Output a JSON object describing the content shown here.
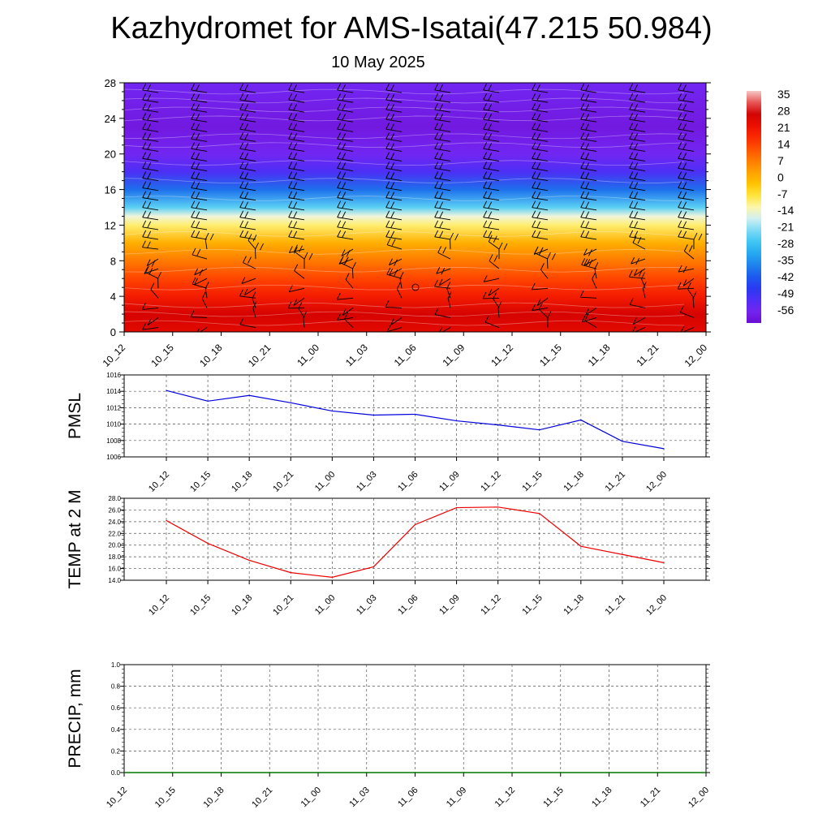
{
  "header": {
    "title": "Kazhydromet for AMS-Isatai(47.215 50.984)",
    "subtitle": "10 May 2025"
  },
  "chart_data": [
    {
      "type": "heatmap",
      "name": "temperature-wind-profile",
      "xlabel": "",
      "ylabel": "",
      "time_labels": [
        "10_12",
        "10_15",
        "10_18",
        "10_21",
        "11_00",
        "11_03",
        "11_06",
        "11_09",
        "11_12",
        "11_15",
        "11_18",
        "11_21",
        "12_00"
      ],
      "y_ticks": [
        0,
        4,
        8,
        12,
        16,
        20,
        24,
        28
      ],
      "ylim": [
        0,
        28
      ],
      "colorbar": {
        "labels": [
          "35",
          "28",
          "21",
          "14",
          "7",
          "0",
          "-7",
          "-14",
          "-21",
          "-28",
          "-35",
          "-42",
          "-49",
          "-56"
        ],
        "range": [
          -60,
          37
        ]
      },
      "temperature_profile": [
        {
          "level": 0,
          "value": 24
        },
        {
          "level": 2,
          "value": 26
        },
        {
          "level": 4,
          "value": 20
        },
        {
          "level": 6,
          "value": 14
        },
        {
          "level": 8,
          "value": 8
        },
        {
          "level": 10,
          "value": 1
        },
        {
          "level": 12,
          "value": -9
        },
        {
          "level": 13,
          "value": -14
        },
        {
          "level": 14,
          "value": -24
        },
        {
          "level": 16,
          "value": -38
        },
        {
          "level": 18,
          "value": -50
        },
        {
          "level": 20,
          "value": -55
        },
        {
          "level": 23,
          "value": -58
        },
        {
          "level": 28,
          "value": -55
        }
      ]
    },
    {
      "type": "line",
      "name": "pmsl",
      "ylabel": "PMSL",
      "x": [
        "10_12",
        "10_15",
        "10_18",
        "10_21",
        "11_00",
        "11_03",
        "11_06",
        "11_09",
        "11_12",
        "11_15",
        "11_18",
        "11_21",
        "12_00"
      ],
      "series": [
        {
          "values": [
            1014.1,
            1012.8,
            1013.5,
            1012.6,
            1011.6,
            1011.1,
            1011.2,
            1010.4,
            1009.9,
            1009.3,
            1010.5,
            1007.9,
            1007.0
          ]
        }
      ],
      "ylim": [
        1006,
        1016
      ],
      "y_ticks": [
        "1006",
        "1008",
        "1010",
        "1012",
        "1014",
        "1016"
      ],
      "color": "#0000dd"
    },
    {
      "type": "line",
      "name": "temp2m",
      "ylabel": "TEMP at 2 M",
      "x": [
        "10_12",
        "10_15",
        "10_18",
        "10_21",
        "11_00",
        "11_03",
        "11_06",
        "11_09",
        "11_12",
        "11_15",
        "11_18",
        "11_21",
        "12_00"
      ],
      "series": [
        {
          "values": [
            24.2,
            20.3,
            17.4,
            15.3,
            14.5,
            16.3,
            23.5,
            26.4,
            26.5,
            25.4,
            19.8,
            18.4,
            17.0
          ]
        }
      ],
      "ylim": [
        14,
        28
      ],
      "y_ticks": [
        "14.0",
        "16.0",
        "18.0",
        "20.0",
        "22.0",
        "24.0",
        "26.0",
        "28.0"
      ],
      "color": "#ee0000"
    },
    {
      "type": "line",
      "name": "precip",
      "ylabel": "PRECIP, mm",
      "x": [
        "10_12",
        "10_15",
        "10_18",
        "10_21",
        "11_00",
        "11_03",
        "11_06",
        "11_09",
        "11_12",
        "11_15",
        "11_18",
        "11_21",
        "12_00"
      ],
      "series": [
        {
          "values": [
            0,
            0,
            0,
            0,
            0,
            0,
            0,
            0,
            0,
            0,
            0,
            0,
            0
          ]
        }
      ],
      "ylim": [
        0,
        1
      ],
      "y_ticks": [
        "0.0",
        "0.2",
        "0.4",
        "0.6",
        "0.8",
        "1.0"
      ],
      "color": "#007700"
    }
  ]
}
